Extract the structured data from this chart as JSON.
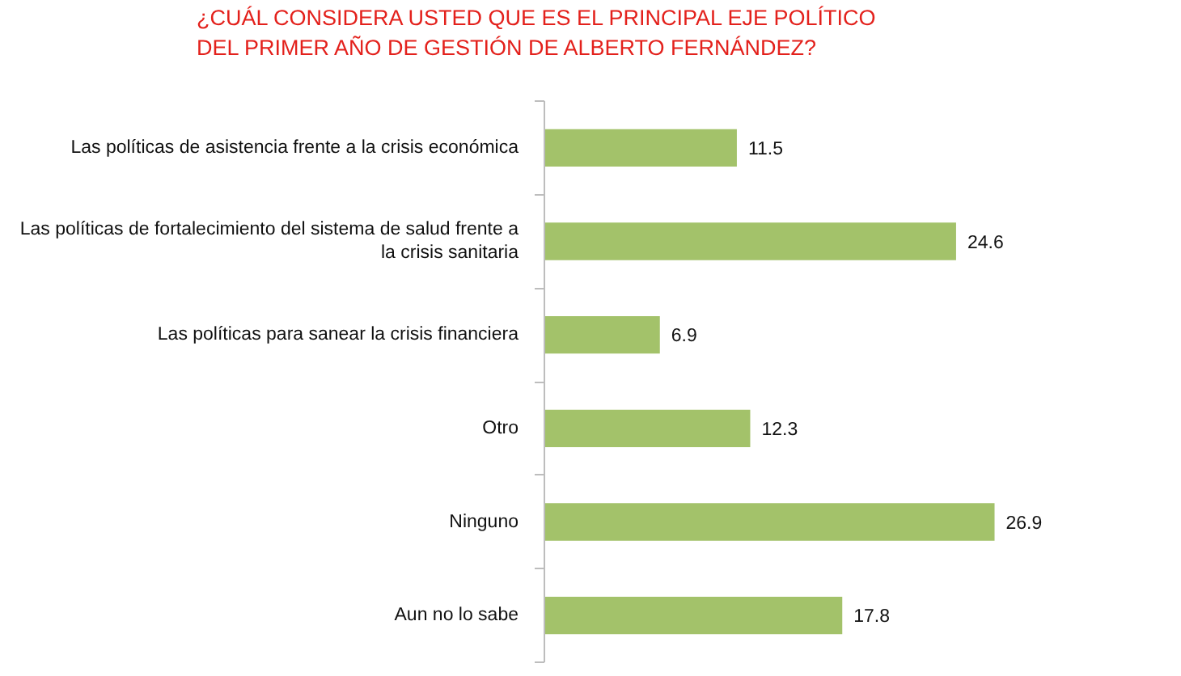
{
  "chart_data": {
    "type": "bar",
    "orientation": "horizontal",
    "title": "¿CUÁL CONSIDERA USTED QUE ES EL PRINCIPAL EJE POLÍTICO DEL PRIMER AÑO DE GESTIÓN DE ALBERTO FERNÁNDEZ?",
    "categories": [
      "Las políticas de asistencia frente a la crisis económica",
      "Las políticas de fortalecimiento del sistema de salud frente a la crisis sanitaria",
      "Las políticas para sanear la crisis financiera",
      "Otro",
      "Ninguno",
      "Aun no lo sabe"
    ],
    "values": [
      11.5,
      24.6,
      6.9,
      12.3,
      26.9,
      17.8
    ],
    "color": "#a3c26a",
    "data_labels": true
  }
}
